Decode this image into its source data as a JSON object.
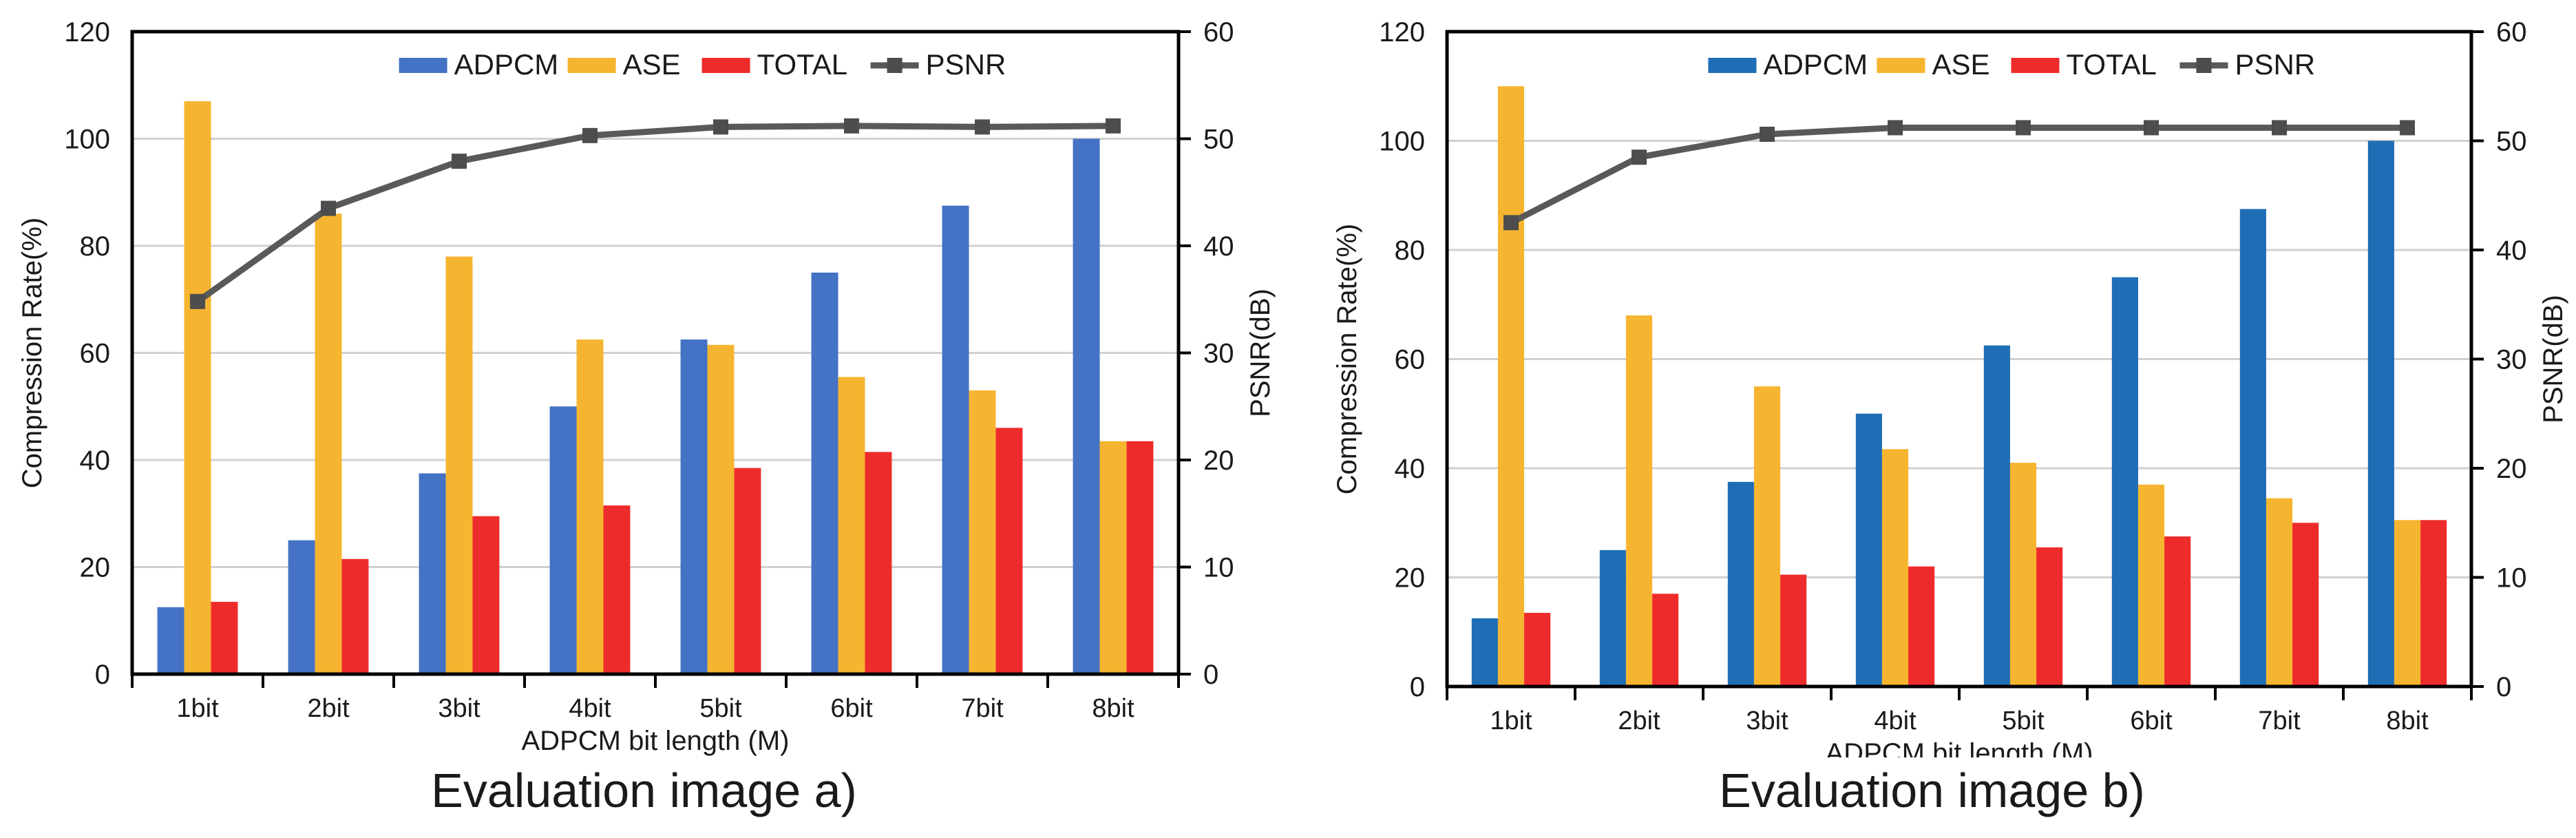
{
  "chart_data": [
    {
      "type": "bar",
      "caption": "Evaluation image a)",
      "categories": [
        "1bit",
        "2bit",
        "3bit",
        "4bit",
        "5bit",
        "6bit",
        "7bit",
        "8bit"
      ],
      "series": [
        {
          "name": "ADPCM",
          "axis": "left",
          "color": "#4472c4",
          "values": [
            12.5,
            25,
            37.5,
            50,
            62.5,
            75,
            87.5,
            100
          ]
        },
        {
          "name": "ASE",
          "axis": "left",
          "color": "#f6b530",
          "values": [
            107,
            86,
            78,
            62.5,
            61.5,
            55.5,
            53,
            43.5
          ]
        },
        {
          "name": "TOTAL",
          "axis": "left",
          "color": "#ee2b2b",
          "values": [
            13.5,
            21.5,
            29.5,
            31.5,
            38.5,
            41.5,
            46,
            43.5
          ]
        }
      ],
      "line_series": {
        "name": "PSNR",
        "axis": "right",
        "type": "line",
        "color": "#595959",
        "values": [
          34.8,
          43.5,
          47.9,
          50.3,
          51.1,
          51.2,
          51.1,
          51.2
        ]
      },
      "xlabel": "ADPCM bit length (M)",
      "ylabel": "Compression Rate(%)",
      "y2label": "PSNR(dB)",
      "ylim": [
        0,
        120
      ],
      "y2lim": [
        0,
        60
      ],
      "yticks": [
        "0",
        "20",
        "40",
        "60",
        "80",
        "100",
        "120"
      ],
      "y2ticks": [
        "0",
        "10",
        "20",
        "30",
        "40",
        "50",
        "60"
      ],
      "grid": true,
      "legend": "top"
    },
    {
      "type": "bar",
      "caption": "Evaluation image b)",
      "categories": [
        "1bit",
        "2bit",
        "3bit",
        "4bit",
        "5bit",
        "6bit",
        "7bit",
        "8bit"
      ],
      "series": [
        {
          "name": "ADPCM",
          "axis": "left",
          "color": "#1f6db4",
          "values": [
            12.5,
            25,
            37.5,
            50,
            62.5,
            75,
            87.5,
            100
          ]
        },
        {
          "name": "ASE",
          "axis": "left",
          "color": "#f6b530",
          "values": [
            110,
            68,
            55,
            43.5,
            41,
            37,
            34.5,
            30.5
          ]
        },
        {
          "name": "TOTAL",
          "axis": "left",
          "color": "#ee2b2b",
          "values": [
            13.5,
            17,
            20.5,
            22,
            25.5,
            27.5,
            30,
            30.5
          ]
        }
      ],
      "line_series": {
        "name": "PSNR",
        "axis": "right",
        "type": "line",
        "color": "#595959",
        "values": [
          42.5,
          48.5,
          50.6,
          51.2,
          51.2,
          51.2,
          51.2,
          51.2
        ]
      },
      "xlabel": "ADPCM bit length (M)",
      "ylabel": "Compression Rate(%)",
      "y2label": "PSNR(dB)",
      "ylim": [
        0,
        120
      ],
      "y2lim": [
        0,
        60
      ],
      "yticks": [
        "0",
        "20",
        "40",
        "60",
        "80",
        "100",
        "120"
      ],
      "y2ticks": [
        "0",
        "10",
        "20",
        "30",
        "40",
        "50",
        "60"
      ],
      "grid": true,
      "legend": "top"
    }
  ]
}
